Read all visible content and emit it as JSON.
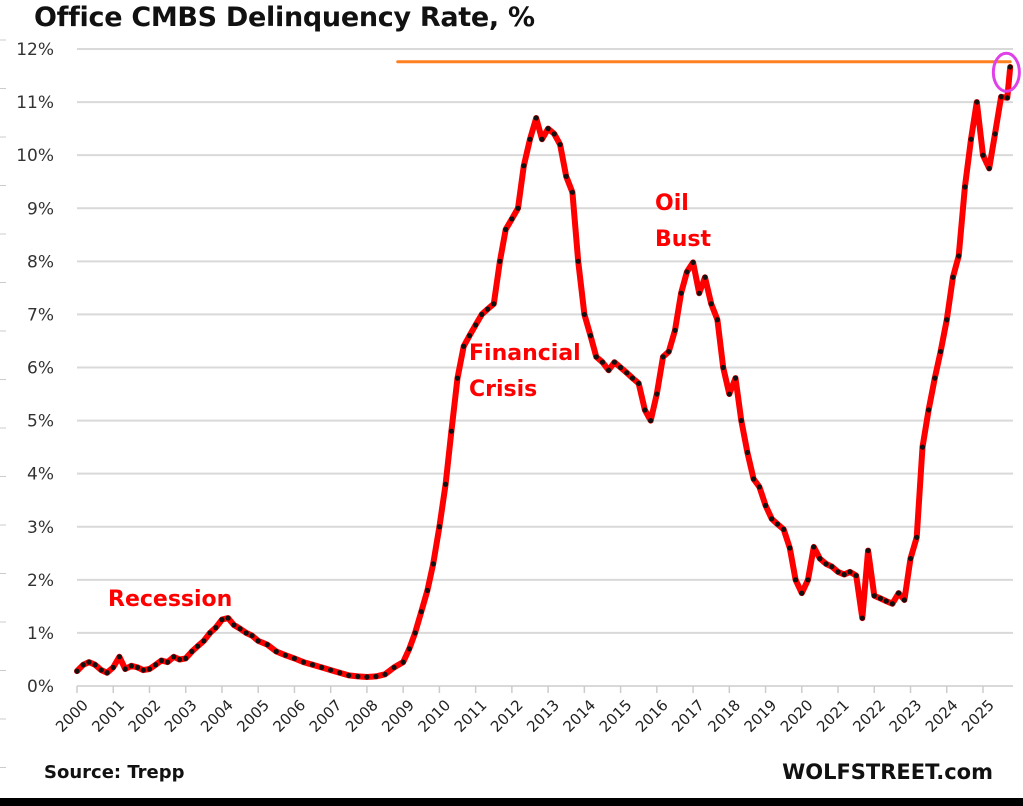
{
  "chart_data": {
    "type": "line",
    "title": "Office CMBS Delinquency Rate, %",
    "xlabel": "",
    "ylabel": "",
    "ylim": [
      0,
      12
    ],
    "xlim": [
      2000,
      2025.8
    ],
    "grid": true,
    "y_ticks": [
      "0%",
      "1%",
      "2%",
      "3%",
      "4%",
      "5%",
      "6%",
      "7%",
      "8%",
      "9%",
      "10%",
      "11%",
      "12%"
    ],
    "x_ticks": [
      "2000",
      "2001",
      "2002",
      "2003",
      "2004",
      "2005",
      "2006",
      "2007",
      "2008",
      "2009",
      "2010",
      "2011",
      "2012",
      "2013",
      "2014",
      "2015",
      "2016",
      "2017",
      "2018",
      "2019",
      "2020",
      "2021",
      "2022",
      "2023",
      "2024",
      "2025"
    ],
    "series": [
      {
        "name": "Office CMBS Delinquency Rate",
        "color": "#ff0000",
        "marker_color": "#111111",
        "x": [
          2000.0,
          2000.17,
          2000.33,
          2000.5,
          2000.67,
          2000.83,
          2001.0,
          2001.17,
          2001.33,
          2001.5,
          2001.67,
          2001.83,
          2002.0,
          2002.17,
          2002.33,
          2002.5,
          2002.67,
          2002.83,
          2003.0,
          2003.17,
          2003.33,
          2003.5,
          2003.67,
          2003.83,
          2004.0,
          2004.17,
          2004.33,
          2004.5,
          2004.67,
          2004.83,
          2005.0,
          2005.25,
          2005.5,
          2005.75,
          2006.0,
          2006.25,
          2006.5,
          2006.75,
          2007.0,
          2007.25,
          2007.5,
          2007.75,
          2008.0,
          2008.25,
          2008.5,
          2008.75,
          2009.0,
          2009.17,
          2009.33,
          2009.5,
          2009.67,
          2009.83,
          2010.0,
          2010.17,
          2010.33,
          2010.5,
          2010.67,
          2010.83,
          2011.0,
          2011.17,
          2011.33,
          2011.5,
          2011.67,
          2011.83,
          2012.0,
          2012.17,
          2012.33,
          2012.5,
          2012.67,
          2012.83,
          2013.0,
          2013.17,
          2013.33,
          2013.5,
          2013.67,
          2013.83,
          2014.0,
          2014.17,
          2014.33,
          2014.5,
          2014.67,
          2014.83,
          2015.0,
          2015.17,
          2015.33,
          2015.5,
          2015.67,
          2015.83,
          2016.0,
          2016.17,
          2016.33,
          2016.5,
          2016.67,
          2016.83,
          2017.0,
          2017.17,
          2017.33,
          2017.5,
          2017.67,
          2017.83,
          2018.0,
          2018.17,
          2018.33,
          2018.5,
          2018.67,
          2018.83,
          2019.0,
          2019.17,
          2019.33,
          2019.5,
          2019.67,
          2019.83,
          2020.0,
          2020.17,
          2020.33,
          2020.5,
          2020.67,
          2020.83,
          2021.0,
          2021.17,
          2021.33,
          2021.5,
          2021.67,
          2021.83,
          2022.0,
          2022.17,
          2022.33,
          2022.5,
          2022.67,
          2022.83,
          2023.0,
          2023.17,
          2023.33,
          2023.5,
          2023.67,
          2023.83,
          2024.0,
          2024.17,
          2024.33,
          2024.5,
          2024.67,
          2024.83,
          2025.0,
          2025.17,
          2025.33,
          2025.5,
          2025.67,
          2025.75
        ],
        "y": [
          0.28,
          0.4,
          0.45,
          0.4,
          0.3,
          0.25,
          0.35,
          0.55,
          0.32,
          0.38,
          0.35,
          0.3,
          0.32,
          0.4,
          0.48,
          0.45,
          0.55,
          0.5,
          0.52,
          0.65,
          0.75,
          0.85,
          1.0,
          1.1,
          1.25,
          1.28,
          1.15,
          1.08,
          1.0,
          0.95,
          0.85,
          0.78,
          0.65,
          0.58,
          0.52,
          0.45,
          0.4,
          0.35,
          0.3,
          0.25,
          0.2,
          0.18,
          0.17,
          0.18,
          0.22,
          0.35,
          0.45,
          0.7,
          1.0,
          1.4,
          1.8,
          2.3,
          3.0,
          3.8,
          4.8,
          5.8,
          6.4,
          6.6,
          6.8,
          7.0,
          7.1,
          7.2,
          8.0,
          8.6,
          8.8,
          9.0,
          9.8,
          10.3,
          10.7,
          10.3,
          10.5,
          10.4,
          10.2,
          9.6,
          9.3,
          8.0,
          7.0,
          6.6,
          6.2,
          6.1,
          5.95,
          6.1,
          6.0,
          5.9,
          5.8,
          5.7,
          5.2,
          5.0,
          5.5,
          6.2,
          6.3,
          6.7,
          7.4,
          7.8,
          7.98,
          7.4,
          7.7,
          7.2,
          6.9,
          6.0,
          5.5,
          5.8,
          5.0,
          4.4,
          3.9,
          3.75,
          3.4,
          3.15,
          3.05,
          2.95,
          2.6,
          2.0,
          1.75,
          2.0,
          2.62,
          2.4,
          2.3,
          2.25,
          2.15,
          2.1,
          2.15,
          2.08,
          1.28,
          2.55,
          1.7,
          1.65,
          1.6,
          1.55,
          1.75,
          1.62,
          2.4,
          2.8,
          4.5,
          5.2,
          5.8,
          6.3,
          6.9,
          7.7,
          8.1,
          9.4,
          10.3,
          11.0,
          10.0,
          9.75,
          10.4,
          11.1,
          11.08,
          11.66
        ]
      }
    ],
    "annotations": [
      {
        "text": "Recession"
      },
      {
        "text": "Financial"
      },
      {
        "text": "Crisis"
      },
      {
        "text": "Oil"
      },
      {
        "text": "Bust"
      }
    ],
    "reference_line": {
      "value": 11.76,
      "from_year": 2008.85,
      "to_year": 2025.75,
      "color": "#ff8020"
    },
    "highlight_circle": {
      "year": 2025.7,
      "value": 11.6,
      "color": "#e040e8"
    }
  },
  "footer": {
    "source": "Source: Trepp",
    "credit": "WOLFSTREET.com"
  }
}
